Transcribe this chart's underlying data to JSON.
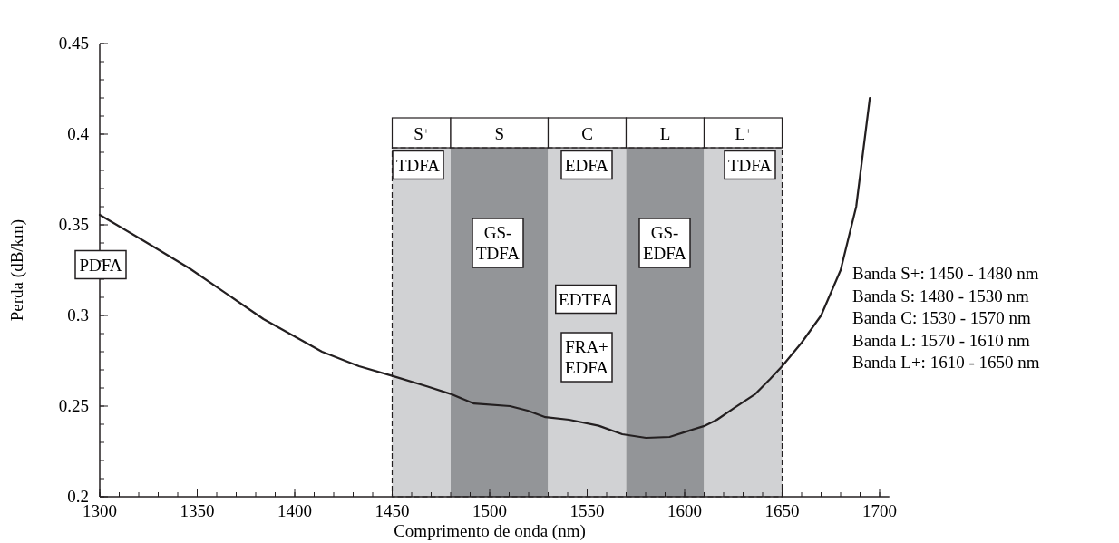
{
  "chart_data": {
    "type": "line",
    "xlabel": "Comprimento de onda (nm)",
    "ylabel": "Perda (dB/km)",
    "xlim": [
      1300,
      1705
    ],
    "ylim": [
      0.2,
      0.45
    ],
    "xticks": [
      1300,
      1350,
      1400,
      1450,
      1500,
      1550,
      1600,
      1650,
      1700
    ],
    "yticks": [
      0.2,
      0.25,
      0.3,
      0.35,
      0.4,
      0.45
    ],
    "grid": false,
    "marker": "none",
    "line_style": "solid",
    "x": [
      1300,
      1320.5,
      1346,
      1384,
      1414,
      1433,
      1450,
      1467.9,
      1480,
      1492,
      1510.4,
      1519.5,
      1528.6,
      1540.7,
      1555.9,
      1568,
      1580.2,
      1592.3,
      1603,
      1610.5,
      1616.6,
      1625.7,
      1636.3,
      1643.9,
      1650,
      1660,
      1670,
      1680,
      1688,
      1695
    ],
    "series": [
      {
        "color": "#231f20",
        "values": [
          0.3555,
          0.3425,
          0.326,
          0.298,
          0.28,
          0.272,
          0.2667,
          0.2609,
          0.2567,
          0.2514,
          0.25,
          0.2475,
          0.2439,
          0.2425,
          0.2392,
          0.2345,
          0.2325,
          0.233,
          0.2367,
          0.2392,
          0.2425,
          0.2492,
          0.2567,
          0.265,
          0.272,
          0.285,
          0.3,
          0.325,
          0.36,
          0.42
        ]
      }
    ],
    "bands": [
      {
        "axis": "x",
        "from": 1450,
        "to": 1480,
        "label": "S$^{+}$",
        "color": "#d1d2d4"
      },
      {
        "axis": "x",
        "from": 1480,
        "to": 1530,
        "label": "S",
        "color": "#939598"
      },
      {
        "axis": "x",
        "from": 1530,
        "to": 1570,
        "label": "C",
        "color": "#d1d2d4"
      },
      {
        "axis": "x",
        "from": 1570,
        "to": 1610,
        "label": "L",
        "color": "#939598"
      },
      {
        "axis": "x",
        "from": 1610,
        "to": 1650,
        "label": "L$^{+}$",
        "color": "#d1d2d4"
      }
    ],
    "annotations": [
      "PDFA",
      "TDFA",
      "GS-\nTDFA",
      "EDFA",
      "EDTFA",
      "FRA+\nEDFA",
      "GS-\nEDFA",
      "TDFA",
      "Banda S+: 1450 - 1480 nm",
      "Banda S: 1480 - 1530 nm",
      "Banda C: 1530 - 1570 nm",
      "Banda L: 1570 - 1610 nm",
      "Banda L+: 1610 - 1650 nm"
    ]
  }
}
